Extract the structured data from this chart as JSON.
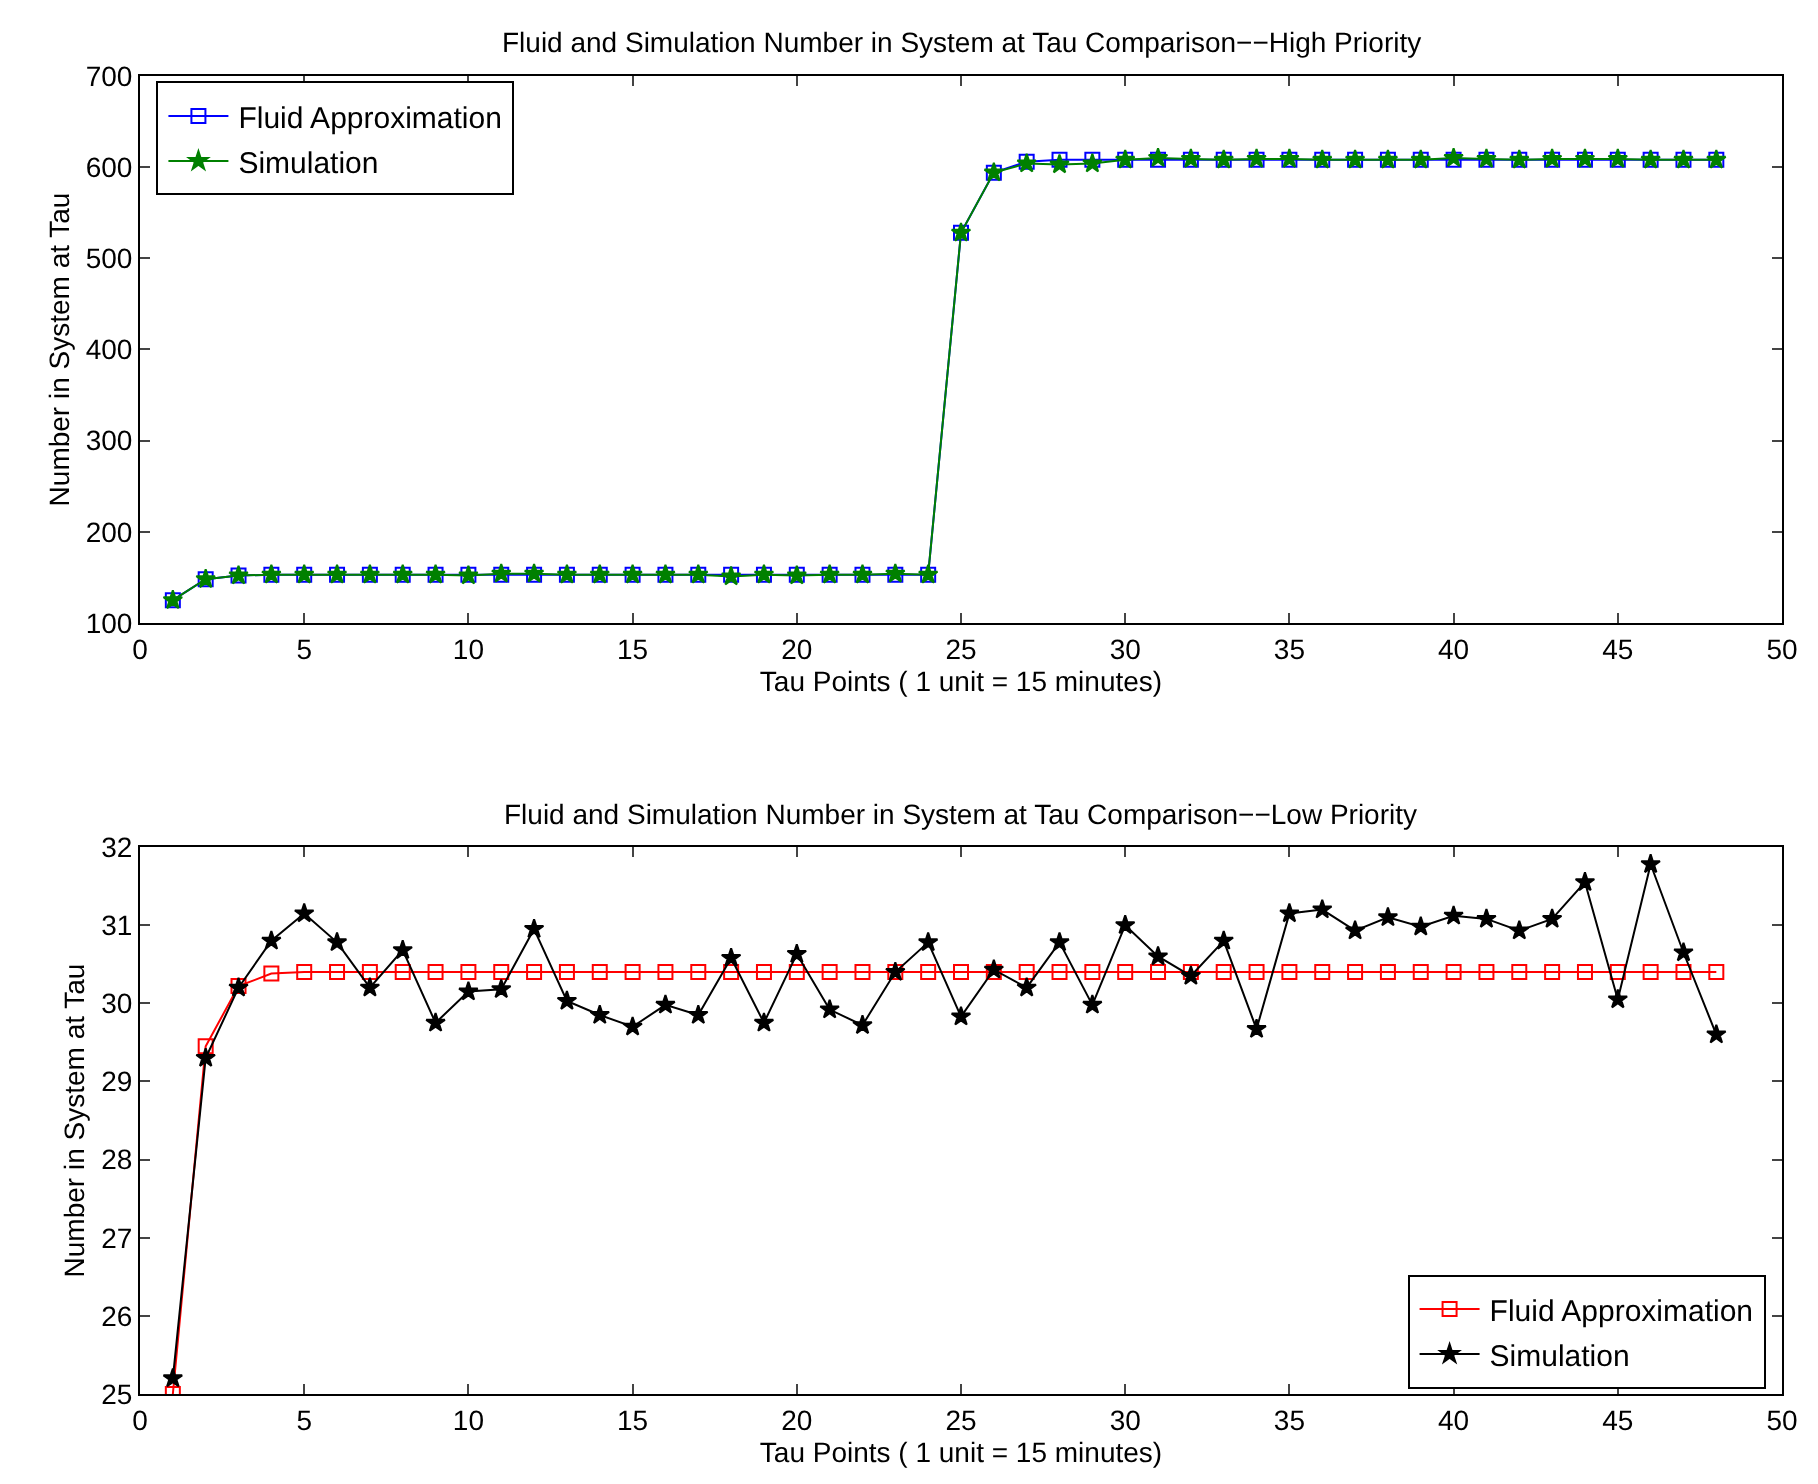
{
  "chart_data": [
    {
      "type": "line",
      "title": "Fluid and Simulation Number in System at Tau Comparison−−High Priority",
      "xlabel": "Tau Points ( 1 unit = 15 minutes)",
      "ylabel": "Number in System at Tau",
      "xlim": [
        0,
        50
      ],
      "xticks": [
        0,
        5,
        10,
        15,
        20,
        25,
        30,
        35,
        40,
        45,
        50
      ],
      "ylim": [
        100,
        700
      ],
      "yticks": [
        100,
        200,
        300,
        400,
        500,
        600,
        700
      ],
      "legend": "top left",
      "x": [
        1,
        2,
        3,
        4,
        5,
        6,
        7,
        8,
        9,
        10,
        11,
        12,
        13,
        14,
        15,
        16,
        17,
        18,
        19,
        20,
        21,
        22,
        23,
        24,
        25,
        26,
        27,
        28,
        29,
        30,
        31,
        32,
        33,
        34,
        35,
        36,
        37,
        38,
        39,
        40,
        41,
        42,
        43,
        44,
        45,
        46,
        47,
        48
      ],
      "series": [
        {
          "name": "Fluid Approximation",
          "color": "#0000ff",
          "marker": "square",
          "values": [
            125,
            148,
            152,
            153,
            153,
            153,
            153,
            153,
            153,
            153,
            153,
            153,
            153,
            153,
            153,
            153,
            153,
            153,
            153,
            153,
            153,
            153,
            153,
            153,
            528,
            594,
            606,
            608,
            608,
            608,
            608,
            608,
            608,
            608,
            608,
            608,
            608,
            608,
            608,
            608,
            608,
            608,
            608,
            608,
            608,
            608,
            608,
            608
          ]
        },
        {
          "name": "Simulation",
          "color": "#008000",
          "marker": "star",
          "values": [
            125,
            148,
            152,
            153,
            153,
            153,
            153,
            153,
            153,
            152,
            154,
            154,
            153,
            153,
            153,
            153,
            153,
            151,
            153,
            152,
            153,
            153,
            154,
            153,
            528,
            594,
            604,
            603,
            604,
            608,
            610,
            609,
            608,
            609,
            609,
            608,
            608,
            608,
            608,
            610,
            609,
            608,
            609,
            609,
            609,
            608,
            608,
            608
          ]
        }
      ]
    },
    {
      "type": "line",
      "title": "Fluid and Simulation Number in System at Tau Comparison−−Low Priority",
      "xlabel": "Tau Points ( 1 unit = 15 minutes)",
      "ylabel": "Number in System at Tau",
      "xlim": [
        0,
        50
      ],
      "xticks": [
        0,
        5,
        10,
        15,
        20,
        25,
        30,
        35,
        40,
        45,
        50
      ],
      "ylim": [
        25,
        32
      ],
      "yticks": [
        25,
        26,
        27,
        28,
        29,
        30,
        31,
        32
      ],
      "legend": "bottom right",
      "x": [
        1,
        2,
        3,
        4,
        5,
        6,
        7,
        8,
        9,
        10,
        11,
        12,
        13,
        14,
        15,
        16,
        17,
        18,
        19,
        20,
        21,
        22,
        23,
        24,
        25,
        26,
        27,
        28,
        29,
        30,
        31,
        32,
        33,
        34,
        35,
        36,
        37,
        38,
        39,
        40,
        41,
        42,
        43,
        44,
        45,
        46,
        47,
        48
      ],
      "series": [
        {
          "name": "Fluid Approximation",
          "color": "#ff0000",
          "marker": "square",
          "values": [
            25.0,
            29.45,
            30.22,
            30.38,
            30.4,
            30.4,
            30.4,
            30.4,
            30.4,
            30.4,
            30.4,
            30.4,
            30.4,
            30.4,
            30.4,
            30.4,
            30.4,
            30.4,
            30.4,
            30.4,
            30.4,
            30.4,
            30.4,
            30.4,
            30.4,
            30.4,
            30.4,
            30.4,
            30.4,
            30.4,
            30.4,
            30.4,
            30.4,
            30.4,
            30.4,
            30.4,
            30.4,
            30.4,
            30.4,
            30.4,
            30.4,
            30.4,
            30.4,
            30.4,
            30.4,
            30.4,
            30.4,
            30.4
          ]
        },
        {
          "name": "Simulation",
          "color": "#000000",
          "marker": "star",
          "values": [
            25.2,
            29.3,
            30.2,
            30.8,
            31.15,
            30.78,
            30.2,
            30.68,
            29.75,
            30.15,
            30.18,
            30.95,
            30.03,
            29.85,
            29.7,
            29.98,
            29.85,
            30.58,
            29.75,
            30.63,
            29.92,
            29.72,
            30.4,
            30.78,
            29.83,
            30.43,
            30.2,
            30.78,
            29.98,
            31.0,
            30.6,
            30.35,
            30.8,
            29.67,
            31.15,
            31.2,
            30.93,
            31.1,
            30.98,
            31.12,
            31.08,
            30.93,
            31.08,
            31.55,
            30.05,
            31.78,
            30.65,
            29.6
          ]
        }
      ]
    }
  ]
}
